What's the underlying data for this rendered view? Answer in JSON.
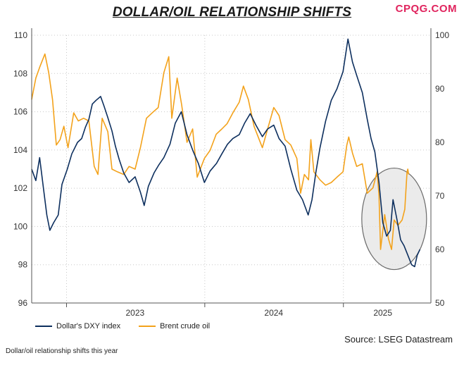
{
  "header": {
    "title": "DOLLAR/OIL RELATIONSHIP SHIFTS",
    "brand": "CPQG.COM"
  },
  "source": "Source: LSEG Datastream",
  "caption": "Dollar/oil relationship shifts this year",
  "chart_data": {
    "type": "line",
    "title": "DOLLAR/OIL RELATIONSHIP SHIFTS",
    "x_range": [
      "2022-10-01",
      "2025-08-20"
    ],
    "x_ticks": [
      {
        "label": "2023",
        "date": "2023-07-01"
      },
      {
        "label": "2024",
        "date": "2024-07-01"
      },
      {
        "label": "2025",
        "date": "2025-04-15"
      }
    ],
    "x_gridlines": [
      "2023-01-01",
      "2024-01-01",
      "2025-01-01"
    ],
    "y_left": {
      "range": [
        96,
        110
      ],
      "ticks": [
        96,
        98,
        100,
        102,
        104,
        106,
        108,
        110
      ]
    },
    "y_right": {
      "range": [
        50,
        100
      ],
      "ticks": [
        50,
        60,
        70,
        80,
        90,
        100
      ]
    },
    "grid": true,
    "legend_position": "bottom-left",
    "annotation": {
      "type": "ellipse",
      "center_date": "2025-05-15",
      "center_y_left": 100.4,
      "note": "highlighted period"
    },
    "series": [
      {
        "name": "Dollar's DXY index",
        "axis": "left",
        "color": "#0d2f5e",
        "points": [
          [
            "2022-10-01",
            103.0
          ],
          [
            "2022-10-12",
            102.4
          ],
          [
            "2022-10-22",
            103.6
          ],
          [
            "2022-11-01",
            102.0
          ],
          [
            "2022-11-10",
            100.6
          ],
          [
            "2022-11-18",
            99.8
          ],
          [
            "2022-11-28",
            100.2
          ],
          [
            "2022-12-10",
            100.6
          ],
          [
            "2022-12-20",
            102.2
          ],
          [
            "2023-01-03",
            103.0
          ],
          [
            "2023-01-15",
            103.8
          ],
          [
            "2023-01-30",
            104.4
          ],
          [
            "2023-02-10",
            104.6
          ],
          [
            "2023-02-20",
            105.2
          ],
          [
            "2023-03-01",
            105.6
          ],
          [
            "2023-03-10",
            106.4
          ],
          [
            "2023-03-20",
            106.6
          ],
          [
            "2023-04-01",
            106.8
          ],
          [
            "2023-04-10",
            106.3
          ],
          [
            "2023-04-20",
            105.7
          ],
          [
            "2023-05-01",
            105.0
          ],
          [
            "2023-05-10",
            104.2
          ],
          [
            "2023-05-20",
            103.5
          ],
          [
            "2023-06-01",
            102.8
          ],
          [
            "2023-06-15",
            102.3
          ],
          [
            "2023-07-01",
            102.6
          ],
          [
            "2023-07-15",
            101.8
          ],
          [
            "2023-07-25",
            101.1
          ],
          [
            "2023-08-05",
            102.1
          ],
          [
            "2023-08-20",
            102.8
          ],
          [
            "2023-09-01",
            103.2
          ],
          [
            "2023-09-15",
            103.6
          ],
          [
            "2023-10-01",
            104.3
          ],
          [
            "2023-10-15",
            105.4
          ],
          [
            "2023-10-31",
            106.0
          ],
          [
            "2023-11-15",
            104.8
          ],
          [
            "2023-11-30",
            104.0
          ],
          [
            "2023-12-15",
            103.3
          ],
          [
            "2023-12-31",
            102.3
          ],
          [
            "2024-01-15",
            102.9
          ],
          [
            "2024-02-01",
            103.3
          ],
          [
            "2024-02-15",
            103.8
          ],
          [
            "2024-03-01",
            104.3
          ],
          [
            "2024-03-15",
            104.6
          ],
          [
            "2024-04-01",
            104.8
          ],
          [
            "2024-04-15",
            105.4
          ],
          [
            "2024-04-30",
            105.9
          ],
          [
            "2024-05-15",
            105.3
          ],
          [
            "2024-06-01",
            104.7
          ],
          [
            "2024-06-15",
            105.1
          ],
          [
            "2024-07-01",
            105.3
          ],
          [
            "2024-07-15",
            104.6
          ],
          [
            "2024-07-31",
            104.2
          ],
          [
            "2024-08-15",
            103.0
          ],
          [
            "2024-08-31",
            101.9
          ],
          [
            "2024-09-15",
            101.4
          ],
          [
            "2024-09-30",
            100.6
          ],
          [
            "2024-10-10",
            101.4
          ],
          [
            "2024-10-20",
            102.8
          ],
          [
            "2024-10-31",
            104.1
          ],
          [
            "2024-11-15",
            105.5
          ],
          [
            "2024-11-30",
            106.6
          ],
          [
            "2024-12-15",
            107.2
          ],
          [
            "2024-12-31",
            108.1
          ],
          [
            "2025-01-13",
            109.8
          ],
          [
            "2025-01-25",
            108.6
          ],
          [
            "2025-02-05",
            107.9
          ],
          [
            "2025-02-20",
            107.0
          ],
          [
            "2025-03-05",
            105.6
          ],
          [
            "2025-03-15",
            104.6
          ],
          [
            "2025-03-25",
            103.9
          ],
          [
            "2025-04-05",
            102.3
          ],
          [
            "2025-04-15",
            100.2
          ],
          [
            "2025-04-25",
            99.5
          ],
          [
            "2025-05-05",
            99.8
          ],
          [
            "2025-05-12",
            101.4
          ],
          [
            "2025-05-22",
            100.4
          ],
          [
            "2025-06-01",
            99.3
          ],
          [
            "2025-06-10",
            99.0
          ],
          [
            "2025-06-20",
            98.5
          ],
          [
            "2025-06-30",
            98.0
          ],
          [
            "2025-07-08",
            97.9
          ],
          [
            "2025-07-15",
            98.5
          ],
          [
            "2025-07-22",
            98.8
          ]
        ]
      },
      {
        "name": "Brent crude oil",
        "axis": "right",
        "color": "#f3a21b",
        "points": [
          [
            "2022-10-01",
            88.0
          ],
          [
            "2022-10-12",
            92.0
          ],
          [
            "2022-10-22",
            94.0
          ],
          [
            "2022-11-05",
            96.5
          ],
          [
            "2022-11-15",
            93.0
          ],
          [
            "2022-11-25",
            88.0
          ],
          [
            "2022-12-05",
            79.5
          ],
          [
            "2022-12-15",
            80.5
          ],
          [
            "2022-12-25",
            83.0
          ],
          [
            "2023-01-05",
            79.0
          ],
          [
            "2023-01-20",
            85.5
          ],
          [
            "2023-02-01",
            84.0
          ],
          [
            "2023-02-15",
            84.5
          ],
          [
            "2023-03-01",
            84.0
          ],
          [
            "2023-03-15",
            75.5
          ],
          [
            "2023-03-25",
            74.0
          ],
          [
            "2023-04-05",
            84.5
          ],
          [
            "2023-04-20",
            82.0
          ],
          [
            "2023-05-01",
            75.0
          ],
          [
            "2023-05-15",
            74.5
          ],
          [
            "2023-06-01",
            74.0
          ],
          [
            "2023-06-15",
            75.5
          ],
          [
            "2023-07-01",
            75.0
          ],
          [
            "2023-07-15",
            79.0
          ],
          [
            "2023-07-31",
            84.5
          ],
          [
            "2023-08-15",
            85.5
          ],
          [
            "2023-08-31",
            86.5
          ],
          [
            "2023-09-15",
            93.0
          ],
          [
            "2023-09-28",
            96.0
          ],
          [
            "2023-10-06",
            84.5
          ],
          [
            "2023-10-20",
            92.0
          ],
          [
            "2023-11-01",
            87.0
          ],
          [
            "2023-11-15",
            80.0
          ],
          [
            "2023-11-30",
            82.5
          ],
          [
            "2023-12-12",
            73.5
          ],
          [
            "2023-12-31",
            77.0
          ],
          [
            "2024-01-15",
            78.5
          ],
          [
            "2024-01-31",
            81.5
          ],
          [
            "2024-02-15",
            82.5
          ],
          [
            "2024-02-29",
            83.5
          ],
          [
            "2024-03-15",
            85.5
          ],
          [
            "2024-04-01",
            87.5
          ],
          [
            "2024-04-12",
            90.5
          ],
          [
            "2024-04-25",
            88.0
          ],
          [
            "2024-05-10",
            83.0
          ],
          [
            "2024-06-01",
            79.0
          ],
          [
            "2024-06-15",
            82.5
          ],
          [
            "2024-07-01",
            86.5
          ],
          [
            "2024-07-15",
            85.0
          ],
          [
            "2024-07-31",
            80.5
          ],
          [
            "2024-08-15",
            79.5
          ],
          [
            "2024-08-31",
            77.0
          ],
          [
            "2024-09-10",
            70.5
          ],
          [
            "2024-09-20",
            74.0
          ],
          [
            "2024-10-01",
            73.0
          ],
          [
            "2024-10-07",
            80.5
          ],
          [
            "2024-10-15",
            74.5
          ],
          [
            "2024-10-31",
            73.0
          ],
          [
            "2024-11-15",
            72.0
          ],
          [
            "2024-11-30",
            72.5
          ],
          [
            "2024-12-15",
            73.5
          ],
          [
            "2024-12-31",
            74.5
          ],
          [
            "2025-01-10",
            79.5
          ],
          [
            "2025-01-15",
            81.0
          ],
          [
            "2025-01-25",
            78.0
          ],
          [
            "2025-02-05",
            75.5
          ],
          [
            "2025-02-20",
            76.0
          ],
          [
            "2025-03-05",
            70.5
          ],
          [
            "2025-03-20",
            71.5
          ],
          [
            "2025-03-31",
            74.5
          ],
          [
            "2025-04-05",
            70.0
          ],
          [
            "2025-04-09",
            60.0
          ],
          [
            "2025-04-20",
            66.5
          ],
          [
            "2025-04-30",
            62.0
          ],
          [
            "2025-05-08",
            60.0
          ],
          [
            "2025-05-15",
            65.5
          ],
          [
            "2025-05-25",
            64.5
          ],
          [
            "2025-06-05",
            65.5
          ],
          [
            "2025-06-12",
            67.5
          ],
          [
            "2025-06-18",
            74.5
          ],
          [
            "2025-06-20",
            75.0
          ],
          [
            "2025-06-22",
            74.0
          ]
        ]
      }
    ]
  }
}
